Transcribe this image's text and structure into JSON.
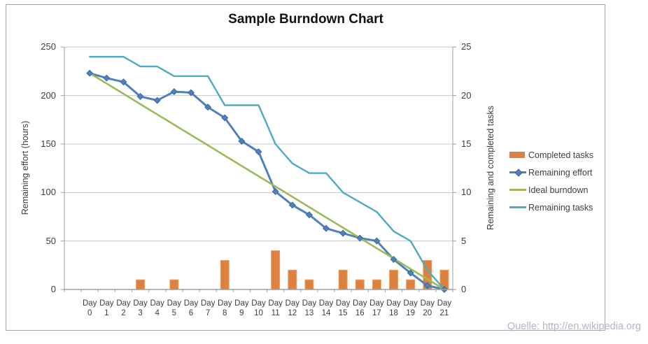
{
  "title": "Sample Burndown Chart",
  "source_note": "Quelle: http://en.wikipedia.org",
  "axes": {
    "left": {
      "title": "Remaining effort (hours)",
      "ticks": [
        250,
        200,
        150,
        100,
        50,
        0
      ],
      "range": [
        0,
        250
      ]
    },
    "right": {
      "title": "Remaining and completed tasks",
      "ticks": [
        25,
        20,
        15,
        10,
        5,
        0
      ],
      "range": [
        0,
        25
      ]
    },
    "x": {
      "label_prefix": "Day",
      "days": [
        "0",
        "1",
        "2",
        "3",
        "4",
        "5",
        "6",
        "7",
        "8",
        "9",
        "10",
        "11",
        "12",
        "13",
        "14",
        "15",
        "16",
        "17",
        "18",
        "19",
        "20",
        "21"
      ]
    }
  },
  "legend": {
    "position": "right",
    "items": [
      {
        "label": "Completed tasks",
        "swatch": "bar",
        "color": "#DD8140"
      },
      {
        "label": "Remaining effort",
        "swatch": "line-marker",
        "color": "#4F81BD"
      },
      {
        "label": "Ideal burndown",
        "swatch": "line",
        "color": "#9BBB59"
      },
      {
        "label": "Remaining tasks",
        "swatch": "line",
        "color": "#4BACC6"
      }
    ]
  },
  "chart_data": {
    "type": "combo",
    "title": "Sample Burndown Chart",
    "categories": [
      "Day 0",
      "Day 1",
      "Day 2",
      "Day 3",
      "Day 4",
      "Day 5",
      "Day 6",
      "Day 7",
      "Day 8",
      "Day 9",
      "Day 10",
      "Day 11",
      "Day 12",
      "Day 13",
      "Day 14",
      "Day 15",
      "Day 16",
      "Day 17",
      "Day 18",
      "Day 19",
      "Day 20",
      "Day 21"
    ],
    "left_ylabel": "Remaining effort (hours)",
    "right_ylabel": "Remaining and completed tasks",
    "left_ylim": [
      0,
      250
    ],
    "right_ylim": [
      0,
      25
    ],
    "grid": "horizontal-only",
    "legend_position": "right",
    "series": [
      {
        "name": "Completed tasks",
        "type": "bar",
        "axis": "right",
        "color": "#DD8140",
        "values": [
          0,
          0,
          0,
          1,
          0,
          1,
          0,
          0,
          3,
          0,
          0,
          4,
          2,
          1,
          0,
          2,
          1,
          1,
          2,
          1,
          3,
          2
        ]
      },
      {
        "name": "Remaining effort",
        "type": "line",
        "marker": "diamond",
        "axis": "left",
        "color": "#4F81BD",
        "values": [
          223,
          218,
          214,
          199,
          195,
          204,
          203,
          188,
          177,
          153,
          142,
          101,
          87,
          77,
          63,
          58,
          53,
          50,
          31,
          17,
          4,
          0
        ]
      },
      {
        "name": "Ideal burndown",
        "type": "line",
        "axis": "left",
        "color": "#9BBB59",
        "values": [
          223,
          212.4,
          201.8,
          191.1,
          180.5,
          169.9,
          159.3,
          148.7,
          138.0,
          127.4,
          116.8,
          106.2,
          95.6,
          84.9,
          74.3,
          63.7,
          53.1,
          42.5,
          31.9,
          21.2,
          10.6,
          0
        ]
      },
      {
        "name": "Remaining tasks",
        "type": "line",
        "axis": "right",
        "color": "#4BACC6",
        "values": [
          24,
          24,
          24,
          23,
          23,
          22,
          22,
          22,
          19,
          19,
          19,
          15,
          13,
          12,
          12,
          10,
          9,
          8,
          6,
          5,
          2,
          0
        ]
      }
    ]
  }
}
